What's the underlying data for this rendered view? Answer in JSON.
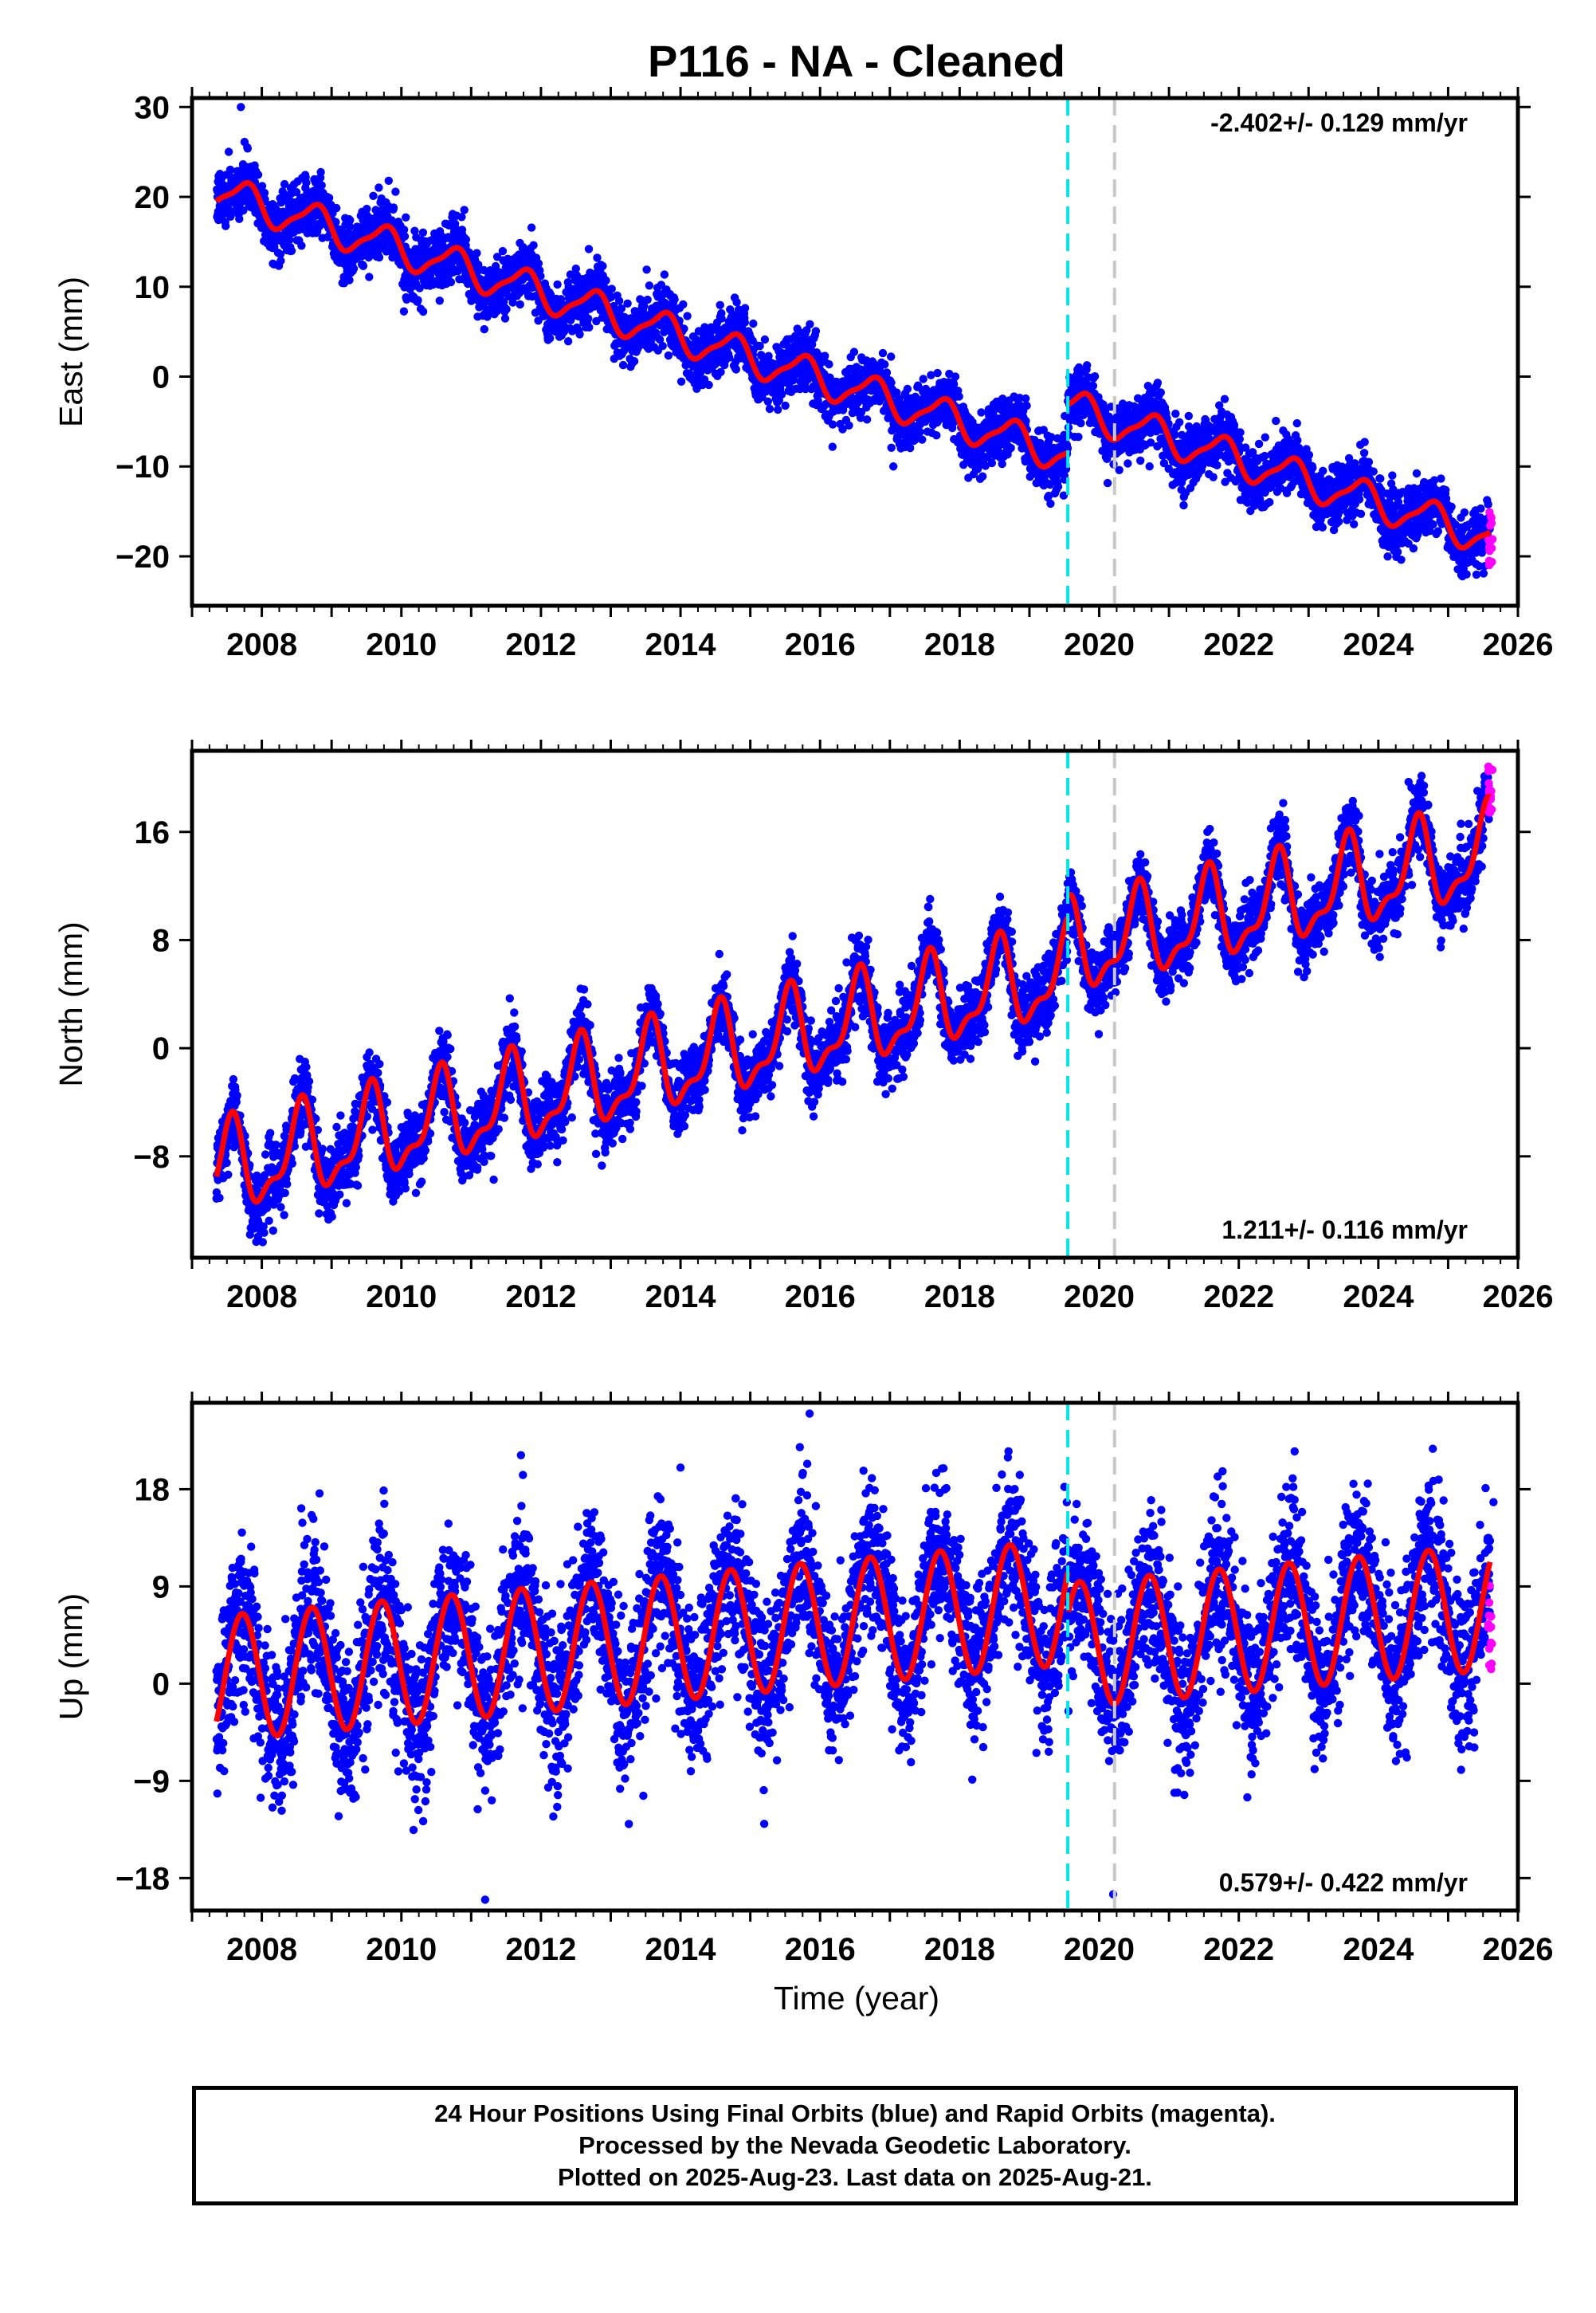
{
  "title": "P116  - NA - Cleaned",
  "xlabel": "Time (year)",
  "footer": {
    "line1": "24 Hour Positions Using Final Orbits (blue) and Rapid Orbits (magenta).",
    "line2": "Processed by the Nevada Geodetic Laboratory.",
    "line3": "Plotted on 2025-Aug-23. Last data on 2025-Aug-21."
  },
  "colors": {
    "final_orbits": "#0000ff",
    "rapid_orbits": "#ff00ff",
    "model": "#ff0000",
    "event_cyan": "#00e5e5",
    "event_gray": "#c8c8c8"
  },
  "chart_data": [
    {
      "id": "east",
      "type": "scatter",
      "ylabel": "East (mm)",
      "rate_text": "-2.402+/- 0.129 mm/yr",
      "rate_position": "top-right",
      "xlim": [
        2007.0,
        2026.0
      ],
      "ylim": [
        -25.5,
        31.0
      ],
      "xticks": [
        2008,
        2010,
        2012,
        2014,
        2016,
        2018,
        2020,
        2022,
        2024,
        2026
      ],
      "yticks": [
        -20,
        -10,
        0,
        10,
        20,
        30
      ],
      "data_range_x": [
        2007.35,
        2025.6
      ],
      "event_lines": [
        {
          "x": 2019.55,
          "color": "cyan"
        },
        {
          "x": 2020.22,
          "color": "gray"
        }
      ],
      "model": {
        "value_at_start": 19.5,
        "rate": -2.402,
        "annual_amplitude": 2.1,
        "phase_peak": 0.75,
        "noise": 1.6,
        "steps": [
          {
            "x": 2019.55,
            "dy": 5.4
          }
        ],
        "seasonal_shape": "skewed"
      },
      "rapid_points": {
        "x_range": [
          2025.57,
          2025.64
        ],
        "y_range": [
          -21.0,
          -15.0
        ]
      },
      "outliers": [
        {
          "x": 2007.7,
          "y": 30.0
        },
        {
          "x": 2017.05,
          "y": -10.0
        },
        {
          "x": 2024.2,
          "y": -11.0
        }
      ]
    },
    {
      "id": "north",
      "type": "scatter",
      "ylabel": "North (mm)",
      "rate_text": "1.211+/- 0.116 mm/yr",
      "rate_position": "bottom-right",
      "xlim": [
        2007.0,
        2026.0
      ],
      "ylim": [
        -15.5,
        22.0
      ],
      "xticks": [
        2008,
        2010,
        2012,
        2014,
        2016,
        2018,
        2020,
        2022,
        2024,
        2026
      ],
      "yticks": [
        -8,
        0,
        8,
        16
      ],
      "data_range_x": [
        2007.35,
        2025.6
      ],
      "event_lines": [
        {
          "x": 2019.55,
          "color": "cyan"
        },
        {
          "x": 2020.22,
          "color": "gray"
        }
      ],
      "model": {
        "value_at_start": -9.5,
        "rate": 1.211,
        "annual_amplitude": 3.6,
        "phase_peak": 0.55,
        "noise": 1.3,
        "steps": [
          {
            "x": 2019.55,
            "dy": 1.5
          }
        ],
        "seasonal_shape": "peaked"
      },
      "rapid_points": {
        "x_range": [
          2025.57,
          2025.64
        ],
        "y_range": [
          16.0,
          21.0
        ]
      },
      "outliers": []
    },
    {
      "id": "up",
      "type": "scatter",
      "ylabel": "Up (mm)",
      "rate_text": "0.579+/- 0.422 mm/yr",
      "rate_position": "bottom-right",
      "xlim": [
        2007.0,
        2026.0
      ],
      "ylim": [
        -21.0,
        26.0
      ],
      "xticks": [
        2008,
        2010,
        2012,
        2014,
        2016,
        2018,
        2020,
        2022,
        2024,
        2026
      ],
      "yticks": [
        -18,
        -9,
        0,
        9,
        18
      ],
      "data_range_x": [
        2007.35,
        2025.6
      ],
      "event_lines": [
        {
          "x": 2019.55,
          "color": "cyan"
        },
        {
          "x": 2020.22,
          "color": "gray"
        }
      ],
      "model": {
        "value_at_start": -3.5,
        "rate": 0.579,
        "annual_amplitude": 5.8,
        "phase_peak": 0.72,
        "noise": 3.6,
        "steps": [
          {
            "x": 2019.55,
            "dy": -4.0
          }
        ],
        "seasonal_shape": "sine"
      },
      "rapid_points": {
        "x_range": [
          2025.57,
          2025.64
        ],
        "y_range": [
          0.0,
          10.0
        ]
      },
      "outliers": [
        {
          "x": 2015.85,
          "y": 25.0
        },
        {
          "x": 2014.0,
          "y": 20.0
        },
        {
          "x": 2018.7,
          "y": 21.5
        },
        {
          "x": 2022.8,
          "y": 21.5
        },
        {
          "x": 2011.2,
          "y": -20.0
        },
        {
          "x": 2020.2,
          "y": -19.5
        },
        {
          "x": 2025.65,
          "y": 16.8
        }
      ]
    }
  ]
}
